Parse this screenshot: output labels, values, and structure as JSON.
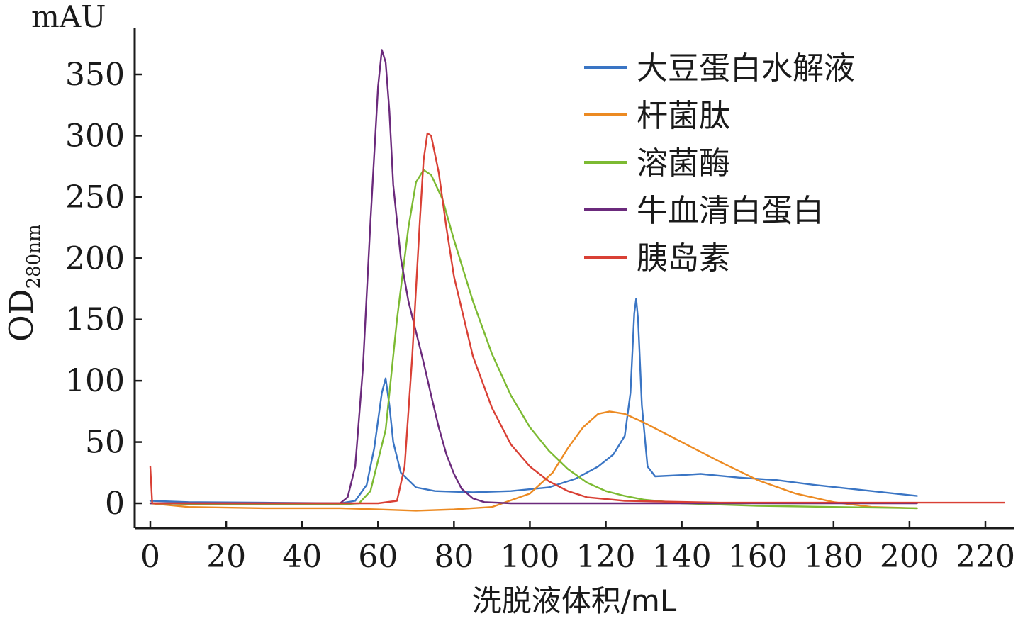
{
  "chart_data": {
    "type": "line",
    "xlabel": "洗脱液体积/mL",
    "ylabel": "OD",
    "ylabel_subscript": "280nm",
    "yunit": "mAU",
    "xlim": [
      0,
      225
    ],
    "ylim": [
      -20,
      385
    ],
    "xticks": [
      0,
      20,
      40,
      60,
      80,
      100,
      120,
      140,
      160,
      180,
      200,
      220
    ],
    "yticks": [
      0,
      50,
      100,
      150,
      200,
      250,
      300,
      350
    ],
    "grid": false,
    "legend_position": "top-right",
    "series": [
      {
        "name": "大豆蛋白水解液",
        "color": "#3a75c4",
        "points": [
          [
            0,
            2
          ],
          [
            10,
            1
          ],
          [
            30,
            0.5
          ],
          [
            50,
            0
          ],
          [
            54,
            2
          ],
          [
            57,
            15
          ],
          [
            59,
            45
          ],
          [
            61,
            90
          ],
          [
            62,
            102
          ],
          [
            63,
            80
          ],
          [
            64,
            50
          ],
          [
            66,
            25
          ],
          [
            70,
            13
          ],
          [
            75,
            10
          ],
          [
            85,
            9
          ],
          [
            95,
            10
          ],
          [
            105,
            13
          ],
          [
            112,
            20
          ],
          [
            118,
            30
          ],
          [
            122,
            40
          ],
          [
            125,
            55
          ],
          [
            126.5,
            90
          ],
          [
            127.5,
            155
          ],
          [
            128,
            167
          ],
          [
            128.5,
            150
          ],
          [
            129.5,
            80
          ],
          [
            131,
            30
          ],
          [
            133,
            22
          ],
          [
            140,
            23
          ],
          [
            145,
            24
          ],
          [
            155,
            21
          ],
          [
            165,
            19
          ],
          [
            175,
            15
          ],
          [
            190,
            10
          ],
          [
            202,
            6
          ]
        ]
      },
      {
        "name": "杆菌肽",
        "color": "#ec8a22",
        "points": [
          [
            0,
            0
          ],
          [
            10,
            -3
          ],
          [
            30,
            -4
          ],
          [
            50,
            -4
          ],
          [
            60,
            -5
          ],
          [
            70,
            -6
          ],
          [
            80,
            -5
          ],
          [
            90,
            -3
          ],
          [
            100,
            8
          ],
          [
            106,
            25
          ],
          [
            110,
            45
          ],
          [
            114,
            62
          ],
          [
            118,
            73
          ],
          [
            121,
            75
          ],
          [
            125,
            73
          ],
          [
            130,
            66
          ],
          [
            140,
            50
          ],
          [
            150,
            34
          ],
          [
            160,
            19
          ],
          [
            170,
            8
          ],
          [
            180,
            1
          ],
          [
            190,
            -3
          ],
          [
            202,
            -4
          ]
        ]
      },
      {
        "name": "溶菌酶",
        "color": "#7cba32",
        "points": [
          [
            0,
            0
          ],
          [
            20,
            -1
          ],
          [
            50,
            -1
          ],
          [
            55,
            0
          ],
          [
            58,
            10
          ],
          [
            62,
            60
          ],
          [
            65,
            150
          ],
          [
            68,
            225
          ],
          [
            70,
            262
          ],
          [
            72,
            272
          ],
          [
            74,
            268
          ],
          [
            77,
            248
          ],
          [
            80,
            215
          ],
          [
            85,
            165
          ],
          [
            90,
            122
          ],
          [
            95,
            88
          ],
          [
            100,
            62
          ],
          [
            105,
            43
          ],
          [
            110,
            28
          ],
          [
            115,
            17
          ],
          [
            120,
            10
          ],
          [
            125,
            6
          ],
          [
            130,
            3
          ],
          [
            140,
            0
          ],
          [
            160,
            -2
          ],
          [
            180,
            -3
          ],
          [
            202,
            -4
          ]
        ]
      },
      {
        "name": "牛血清白蛋白",
        "color": "#6b2a7c",
        "points": [
          [
            0,
            0
          ],
          [
            20,
            0
          ],
          [
            50,
            0
          ],
          [
            52,
            5
          ],
          [
            54,
            30
          ],
          [
            56,
            110
          ],
          [
            58,
            230
          ],
          [
            60,
            340
          ],
          [
            61,
            370
          ],
          [
            62,
            360
          ],
          [
            63,
            320
          ],
          [
            64,
            260
          ],
          [
            66,
            200
          ],
          [
            68,
            165
          ],
          [
            70,
            140
          ],
          [
            72,
            115
          ],
          [
            74,
            88
          ],
          [
            76,
            62
          ],
          [
            78,
            40
          ],
          [
            80,
            24
          ],
          [
            82,
            12
          ],
          [
            85,
            4
          ],
          [
            88,
            1
          ],
          [
            95,
            0
          ],
          [
            130,
            0
          ],
          [
            202,
            0
          ]
        ]
      },
      {
        "name": "胰岛素",
        "color": "#d94035",
        "points": [
          [
            0,
            30
          ],
          [
            0.5,
            0
          ],
          [
            20,
            0
          ],
          [
            50,
            0
          ],
          [
            60,
            0
          ],
          [
            65,
            2
          ],
          [
            67,
            30
          ],
          [
            69,
            120
          ],
          [
            71,
            230
          ],
          [
            72,
            280
          ],
          [
            73,
            302
          ],
          [
            74,
            300
          ],
          [
            76,
            270
          ],
          [
            78,
            225
          ],
          [
            80,
            185
          ],
          [
            85,
            120
          ],
          [
            90,
            78
          ],
          [
            95,
            48
          ],
          [
            100,
            30
          ],
          [
            105,
            18
          ],
          [
            110,
            10
          ],
          [
            115,
            5
          ],
          [
            125,
            2
          ],
          [
            150,
            0.5
          ],
          [
            200,
            0.5
          ],
          [
            225,
            0.5
          ]
        ]
      }
    ]
  }
}
